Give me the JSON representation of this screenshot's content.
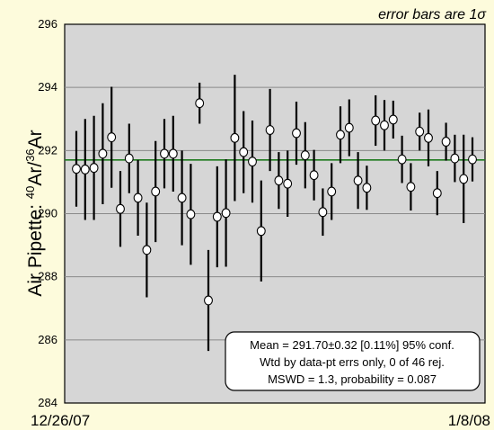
{
  "chart_data": {
    "type": "scatter",
    "note": "error bars are 1σ",
    "ylabel": {
      "prefix": "Air Pipette: ",
      "iso1": "40",
      "el1": "Ar/",
      "iso2": "36",
      "el2": "Ar"
    },
    "x_start_label": "12/26/07",
    "x_end_label": "1/8/08",
    "ylim": [
      284,
      296
    ],
    "yticks": [
      "284",
      "286",
      "288",
      "290",
      "292",
      "294",
      "296"
    ],
    "grid": true,
    "mean_line": 291.7,
    "colors": {
      "plot_bg": "#d6d6d6",
      "page_bg": "#fdfbdc",
      "mean_line": "#1e7a1e",
      "error_bar": "#000000",
      "marker_fill": "#ffffff"
    },
    "series": [
      {
        "values": [
          {
            "y": 291.42,
            "err": 1.2
          },
          {
            "y": 291.4,
            "err": 1.6
          },
          {
            "y": 291.45,
            "err": 1.65
          },
          {
            "y": 291.9,
            "err": 1.6
          },
          {
            "y": 292.42,
            "err": 1.6
          },
          {
            "y": 290.15,
            "err": 1.2
          },
          {
            "y": 291.75,
            "err": 1.1
          },
          {
            "y": 290.5,
            "err": 1.2
          },
          {
            "y": 288.85,
            "err": 1.5
          },
          {
            "y": 290.7,
            "err": 1.6
          },
          {
            "y": 291.9,
            "err": 1.1
          },
          {
            "y": 291.9,
            "err": 1.2
          },
          {
            "y": 290.5,
            "err": 1.5
          },
          {
            "y": 289.98,
            "err": 1.6
          },
          {
            "y": 293.5,
            "err": 0.65
          },
          {
            "y": 287.25,
            "err": 1.6
          },
          {
            "y": 289.9,
            "err": 1.6
          },
          {
            "y": 290.02,
            "err": 1.7
          },
          {
            "y": 292.4,
            "err": 2.0
          },
          {
            "y": 291.95,
            "err": 1.3
          },
          {
            "y": 291.65,
            "err": 1.3
          },
          {
            "y": 289.45,
            "err": 1.6
          },
          {
            "y": 292.65,
            "err": 1.3
          },
          {
            "y": 291.05,
            "err": 0.9
          },
          {
            "y": 290.95,
            "err": 1.05
          },
          {
            "y": 292.55,
            "err": 1.0
          },
          {
            "y": 291.85,
            "err": 1.05
          },
          {
            "y": 291.22,
            "err": 0.8
          },
          {
            "y": 290.05,
            "err": 0.75
          },
          {
            "y": 290.7,
            "err": 0.9
          },
          {
            "y": 292.5,
            "err": 0.9
          },
          {
            "y": 292.72,
            "err": 0.9
          },
          {
            "y": 291.05,
            "err": 0.9
          },
          {
            "y": 290.82,
            "err": 0.7
          },
          {
            "y": 292.95,
            "err": 0.8
          },
          {
            "y": 292.8,
            "err": 0.8
          },
          {
            "y": 292.98,
            "err": 0.6
          },
          {
            "y": 291.72,
            "err": 0.75
          },
          {
            "y": 290.85,
            "err": 0.75
          },
          {
            "y": 292.6,
            "err": 0.6
          },
          {
            "y": 292.4,
            "err": 0.9
          },
          {
            "y": 290.65,
            "err": 0.7
          },
          {
            "y": 292.28,
            "err": 0.6
          },
          {
            "y": 291.75,
            "err": 0.75
          },
          {
            "y": 291.1,
            "err": 1.4
          },
          {
            "y": 291.72,
            "err": 0.7
          }
        ]
      }
    ]
  },
  "stats": {
    "line1": "Mean = 291.70±0.32  [0.11%]  95% conf.",
    "line2": "Wtd by data-pt errs only, 0 of 46 rej.",
    "line3": "MSWD = 1.3, probability = 0.087"
  }
}
